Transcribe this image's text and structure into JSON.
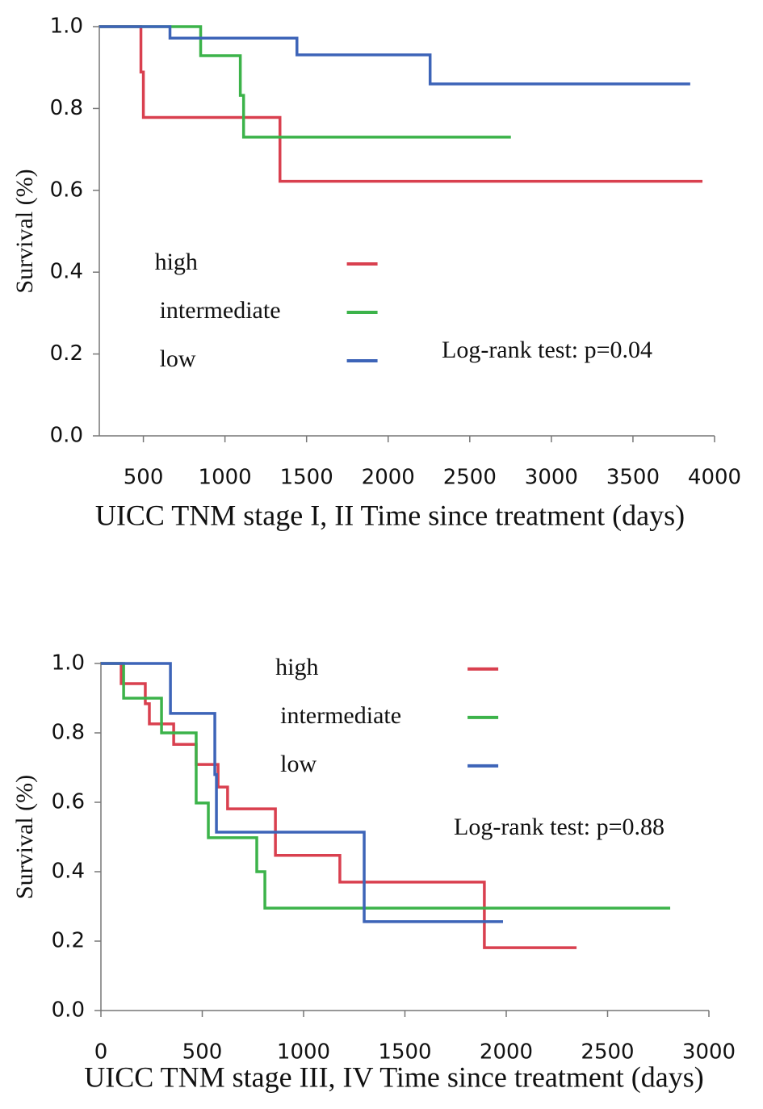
{
  "chart_data": [
    {
      "type": "line",
      "drawstyle": "steps-post",
      "x_label": "UICC TNM stage I, II  Time since treatment (days)",
      "y_label": "Survival (%)",
      "annotation": "Log-rank test: p=0.04",
      "legend": "center left",
      "xlim": [
        230,
        4000
      ],
      "xticks": [
        500,
        1000,
        1500,
        2000,
        2500,
        3000,
        3500,
        4000
      ],
      "ylim": [
        0,
        1
      ],
      "yticks": [
        {
          "value": 0,
          "label": "0.0"
        },
        0.2,
        0.4,
        0.6,
        0.8,
        {
          "value": 1,
          "label": "1.0"
        }
      ],
      "series": [
        {
          "name": "high",
          "color": "#d9404f",
          "x": [
            230,
            485,
            500,
            1337,
            3926
          ],
          "values": [
            1.0,
            0.889,
            0.778,
            0.622,
            0.622
          ]
        },
        {
          "name": "intermediate",
          "color": "#3cb34a",
          "x": [
            230,
            851,
            1094,
            1114,
            2752
          ],
          "values": [
            1.0,
            0.929,
            0.832,
            0.73,
            0.73
          ]
        },
        {
          "name": "low",
          "color": "#3d64b8",
          "x": [
            230,
            663,
            1441,
            2257,
            3851
          ],
          "values": [
            1.0,
            0.972,
            0.931,
            0.86,
            0.86
          ]
        }
      ]
    },
    {
      "type": "line",
      "drawstyle": "steps-post",
      "x_label": "UICC TNM stage III, IV   Time since treatment (days)",
      "y_label": "Survival (%)",
      "annotation": "Log-rank test: p=0.88",
      "legend": "upper center",
      "xlim": [
        0,
        3000
      ],
      "xticks": [
        0,
        500,
        1000,
        1500,
        2000,
        2500,
        3000
      ],
      "ylim": [
        0,
        1
      ],
      "yticks": [
        {
          "value": 0,
          "label": "0.0"
        },
        0.2,
        0.4,
        0.6,
        0.8,
        {
          "value": 1,
          "label": "1.0"
        }
      ],
      "series": [
        {
          "name": "high",
          "color": "#d9404f",
          "x": [
            0,
            100,
            219,
            239,
            359,
            470,
            578,
            625,
            861,
            1179,
            1892,
            2347
          ],
          "values": [
            1.0,
            0.942,
            0.884,
            0.826,
            0.767,
            0.709,
            0.644,
            0.581,
            0.447,
            0.37,
            0.181,
            0.181
          ]
        },
        {
          "name": "intermediate",
          "color": "#3cb34a",
          "x": [
            0,
            112,
            299,
            470,
            530,
            769,
            809,
            2809
          ],
          "values": [
            1.0,
            0.9,
            0.8,
            0.598,
            0.498,
            0.4,
            0.295,
            0.295
          ]
        },
        {
          "name": "low",
          "color": "#3d64b8",
          "x": [
            0,
            343,
            562,
            570,
            1299,
            1984
          ],
          "values": [
            1.0,
            0.856,
            0.68,
            0.514,
            0.256,
            0.256
          ]
        }
      ]
    }
  ]
}
